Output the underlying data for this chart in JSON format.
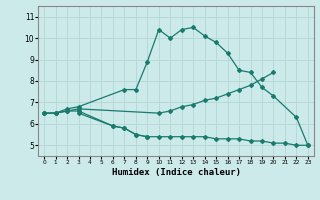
{
  "xlabel": "Humidex (Indice chaleur)",
  "xlim": [
    -0.5,
    23.5
  ],
  "ylim": [
    4.5,
    11.5
  ],
  "yticks": [
    5,
    6,
    7,
    8,
    9,
    10,
    11
  ],
  "xticks": [
    0,
    1,
    2,
    3,
    4,
    5,
    6,
    7,
    8,
    9,
    10,
    11,
    12,
    13,
    14,
    15,
    16,
    17,
    18,
    19,
    20,
    21,
    22,
    23
  ],
  "background_color": "#cceaea",
  "line_color": "#1a7a6e",
  "grid_color": "#b8d8d8",
  "series": [
    {
      "x": [
        0,
        1,
        2,
        3,
        6,
        7,
        8,
        9
      ],
      "y": [
        6.5,
        6.5,
        6.6,
        6.6,
        5.9,
        5.8,
        5.5,
        5.4
      ]
    },
    {
      "x": [
        0,
        1,
        2,
        3,
        7,
        8,
        9,
        10,
        11,
        12,
        13,
        14,
        15,
        16,
        17,
        18,
        19,
        20,
        22,
        23
      ],
      "y": [
        6.5,
        6.5,
        6.7,
        6.8,
        7.6,
        7.6,
        8.9,
        10.4,
        10.0,
        10.4,
        10.5,
        10.1,
        9.8,
        9.3,
        8.5,
        8.4,
        7.7,
        7.3,
        6.3,
        5.0
      ]
    },
    {
      "x": [
        0,
        1,
        2,
        3,
        10,
        11,
        12,
        13,
        14,
        15,
        16,
        17,
        18,
        19,
        20
      ],
      "y": [
        6.5,
        6.5,
        6.6,
        6.7,
        6.5,
        6.6,
        6.8,
        6.9,
        7.1,
        7.2,
        7.4,
        7.6,
        7.8,
        8.1,
        8.4
      ]
    },
    {
      "x": [
        3,
        6,
        7,
        8,
        9,
        10,
        11,
        12,
        13,
        14,
        15,
        16,
        17,
        18,
        19,
        20,
        21,
        22,
        23
      ],
      "y": [
        6.5,
        5.9,
        5.8,
        5.5,
        5.4,
        5.4,
        5.4,
        5.4,
        5.4,
        5.4,
        5.3,
        5.3,
        5.3,
        5.2,
        5.2,
        5.1,
        5.1,
        5.0,
        5.0
      ]
    }
  ]
}
